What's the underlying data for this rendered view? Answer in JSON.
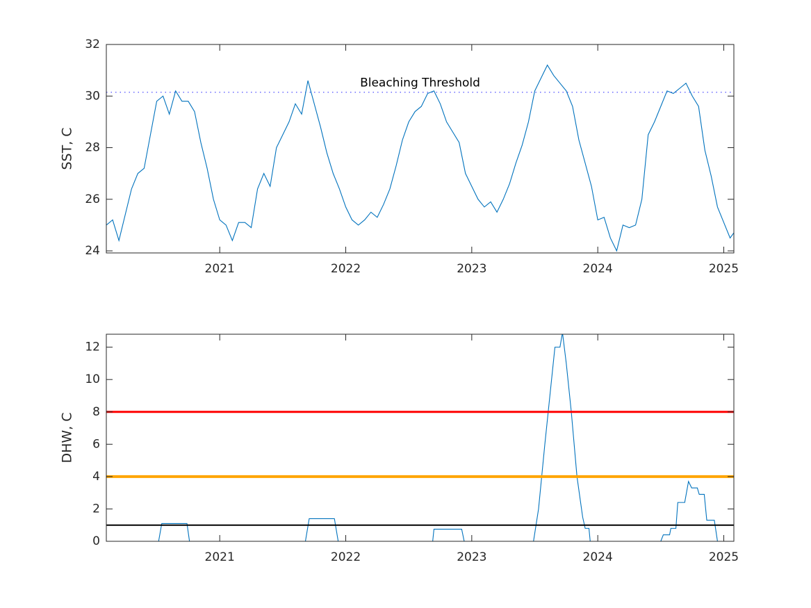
{
  "chart_data": [
    {
      "type": "line",
      "ylabel": "SST, C",
      "xlim": [
        2020.1,
        2025.08
      ],
      "xticks": [
        2021,
        2022,
        2023,
        2024,
        2025
      ],
      "ylim": [
        23.92,
        32
      ],
      "yticks": [
        24,
        26,
        28,
        30,
        32
      ],
      "color": "#0072bd",
      "x": [
        2020.1,
        2020.15,
        2020.2,
        2020.25,
        2020.3,
        2020.35,
        2020.4,
        2020.45,
        2020.5,
        2020.55,
        2020.6,
        2020.65,
        2020.7,
        2020.75,
        2020.8,
        2020.85,
        2020.9,
        2020.95,
        2021,
        2021.05,
        2021.1,
        2021.15,
        2021.2,
        2021.25,
        2021.3,
        2021.35,
        2021.4,
        2021.45,
        2021.5,
        2021.55,
        2021.6,
        2021.65,
        2021.7,
        2021.75,
        2021.8,
        2021.85,
        2021.9,
        2021.95,
        2022,
        2022.05,
        2022.1,
        2022.15,
        2022.2,
        2022.25,
        2022.3,
        2022.35,
        2022.4,
        2022.45,
        2022.5,
        2022.55,
        2022.6,
        2022.65,
        2022.7,
        2022.75,
        2022.8,
        2022.85,
        2022.9,
        2022.95,
        2023,
        2023.05,
        2023.1,
        2023.15,
        2023.2,
        2023.25,
        2023.3,
        2023.35,
        2023.4,
        2023.45,
        2023.5,
        2023.55,
        2023.6,
        2023.65,
        2023.7,
        2023.75,
        2023.8,
        2023.85,
        2023.9,
        2023.95,
        2024,
        2024.05,
        2024.1,
        2024.15,
        2024.2,
        2024.25,
        2024.3,
        2024.35,
        2024.4,
        2024.45,
        2024.5,
        2024.55,
        2024.6,
        2024.65,
        2024.7,
        2024.75,
        2024.8,
        2024.85,
        2024.9,
        2024.95,
        2025,
        2025.05,
        2025.08
      ],
      "values": [
        25.0,
        25.2,
        24.4,
        25.4,
        26.4,
        27.0,
        27.2,
        28.5,
        29.8,
        30.0,
        29.3,
        30.2,
        29.8,
        29.8,
        29.4,
        28.2,
        27.2,
        26.0,
        25.2,
        25.0,
        24.4,
        25.1,
        25.1,
        24.9,
        26.4,
        27.0,
        26.5,
        28.0,
        28.5,
        29.0,
        29.7,
        29.3,
        30.6,
        29.7,
        28.8,
        27.8,
        27.0,
        26.4,
        25.7,
        25.2,
        25.0,
        25.2,
        25.5,
        25.3,
        25.8,
        26.4,
        27.3,
        28.3,
        29.0,
        29.4,
        29.6,
        30.1,
        30.2,
        29.7,
        29.0,
        28.6,
        28.2,
        27.0,
        26.5,
        26.0,
        25.7,
        25.9,
        25.5,
        26.0,
        26.6,
        27.4,
        28.1,
        29.0,
        30.2,
        30.7,
        31.2,
        30.8,
        30.5,
        30.2,
        29.6,
        28.3,
        27.4,
        26.5,
        25.2,
        25.3,
        24.5,
        24.0,
        25.0,
        24.9,
        25.0,
        26.0,
        28.5,
        29.0,
        29.6,
        30.2,
        30.1,
        30.3,
        30.5,
        30.0,
        29.6,
        27.9,
        26.9,
        25.7,
        25.1,
        24.5,
        24.7
      ],
      "threshold": {
        "value": 30.15,
        "label": "Bleaching Threshold",
        "color": "#6a6aff"
      }
    },
    {
      "type": "line",
      "ylabel": "DHW, C",
      "xlim": [
        2020.1,
        2025.08
      ],
      "xticks": [
        2021,
        2022,
        2023,
        2024,
        2025
      ],
      "ylim": [
        0,
        12.8
      ],
      "yticks": [
        0,
        2,
        4,
        6,
        8,
        10,
        12
      ],
      "color": "#0072bd",
      "x": [
        2020.1,
        2020.515,
        2020.54,
        2020.74,
        2020.76,
        2021.68,
        2021.71,
        2021.91,
        2021.94,
        2022.69,
        2022.7,
        2022.92,
        2022.94,
        2023.49,
        2023.53,
        2023.58,
        2023.62,
        2023.66,
        2023.7,
        2023.72,
        2023.75,
        2023.79,
        2023.835,
        2023.88,
        2023.9,
        2023.93,
        2023.94,
        2024.5,
        2024.52,
        2024.57,
        2024.58,
        2024.62,
        2024.635,
        2024.69,
        2024.72,
        2024.745,
        2024.79,
        2024.805,
        2024.845,
        2024.865,
        2024.925,
        2024.95,
        2025.08
      ],
      "values": [
        0,
        0,
        1.1,
        1.1,
        0,
        0,
        1.4,
        1.4,
        0,
        0,
        0.75,
        0.75,
        0,
        0,
        2,
        6,
        9,
        12,
        12,
        12.9,
        11,
        8,
        4,
        1.5,
        0.8,
        0.8,
        0,
        0,
        0.4,
        0.4,
        0.8,
        0.8,
        2.4,
        2.4,
        3.7,
        3.3,
        3.3,
        2.9,
        2.9,
        1.3,
        1.3,
        0,
        0
      ],
      "reference_lines": [
        {
          "value": 8,
          "color": "#ff0000"
        },
        {
          "value": 4,
          "color": "#ffa500"
        },
        {
          "value": 1,
          "color": "#000000"
        }
      ]
    }
  ]
}
